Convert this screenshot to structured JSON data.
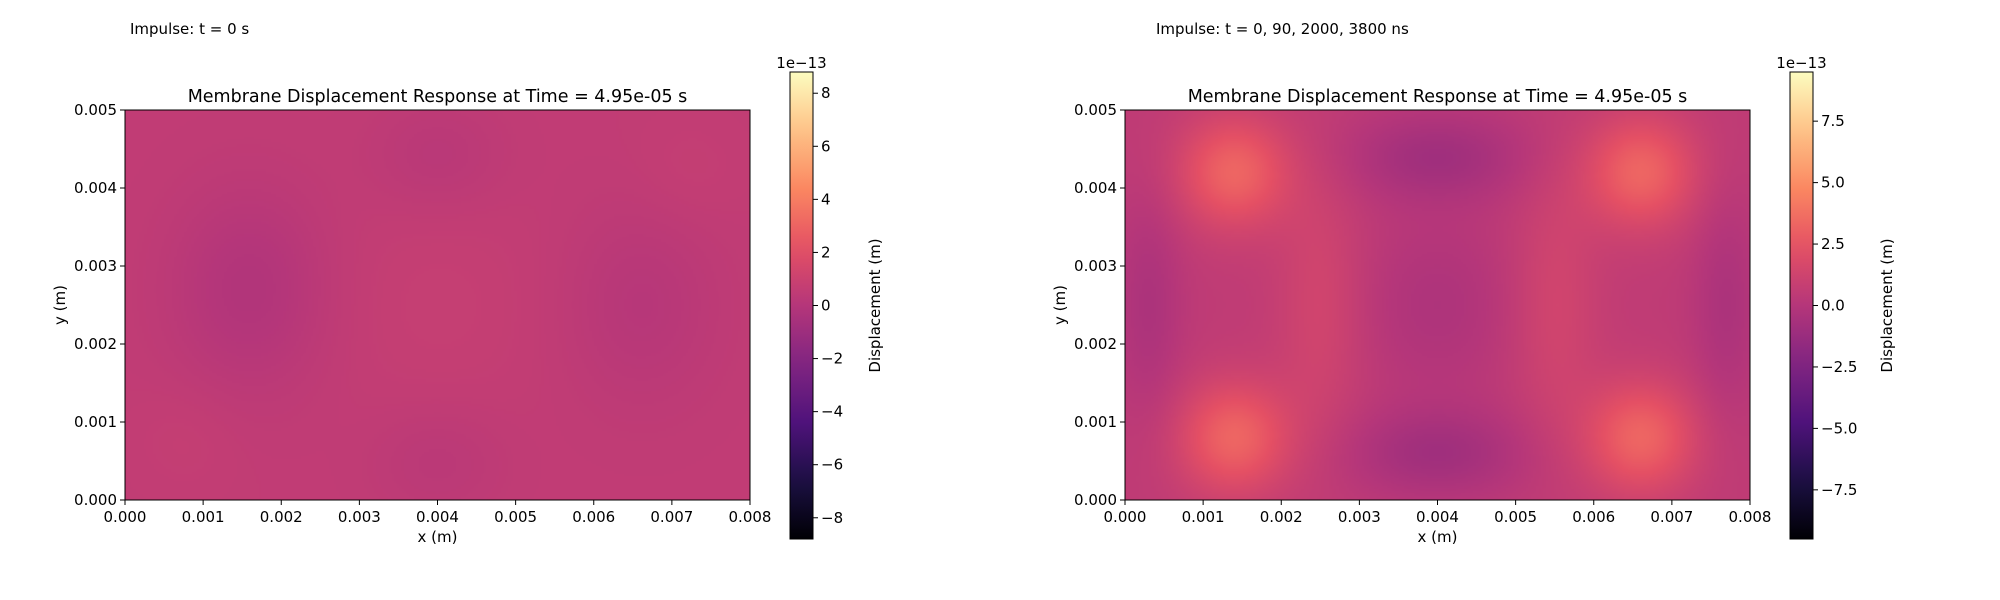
{
  "panels": [
    {
      "caption": "Impulse: t = 0 s",
      "chart_data": {
        "type": "heatmap",
        "title": "Membrane Displacement Response at Time = 4.95e-05 s",
        "xlabel": "x (m)",
        "ylabel": "y (m)",
        "xlim": [
          0,
          0.008
        ],
        "ylim": [
          0,
          0.005
        ],
        "x_ticks": [
          "0.000",
          "0.001",
          "0.002",
          "0.003",
          "0.004",
          "0.005",
          "0.006",
          "0.007",
          "0.008"
        ],
        "y_ticks": [
          "0.000",
          "0.001",
          "0.002",
          "0.003",
          "0.004",
          "0.005"
        ],
        "colormap": "magma",
        "colorbar": {
          "label": "Displacement (m)",
          "offset_text": "1e−13",
          "range": [
            -8.8,
            8.8
          ],
          "ticks": [
            -8,
            -6,
            -4,
            -2,
            0,
            2,
            4,
            6,
            8
          ],
          "tick_labels": [
            "−8",
            "−6",
            "−4",
            "−2",
            "0",
            "2",
            "4",
            "6",
            "8"
          ]
        },
        "field": {
          "base": 0.55,
          "blobs": [
            {
              "x": 0.0016,
              "y": 0.0027,
              "sx": 0.0007,
              "sy": 0.0009,
              "amp": -0.7
            },
            {
              "x": 0.0066,
              "y": 0.0025,
              "sx": 0.0007,
              "sy": 0.0009,
              "amp": -0.45
            },
            {
              "x": 0.004,
              "y": 0.0044,
              "sx": 0.0006,
              "sy": 0.0005,
              "amp": -0.35
            },
            {
              "x": 0.004,
              "y": 0.0005,
              "sx": 0.0006,
              "sy": 0.0005,
              "amp": -0.3
            },
            {
              "x": 0.004,
              "y": 0.0025,
              "sx": 0.001,
              "sy": 0.001,
              "amp": 0.2
            },
            {
              "x": 0.0008,
              "y": 0.0008,
              "sx": 0.0005,
              "sy": 0.0005,
              "amp": 0.15
            },
            {
              "x": 0.0072,
              "y": 0.0042,
              "sx": 0.0005,
              "sy": 0.0005,
              "amp": 0.15
            }
          ]
        }
      }
    },
    {
      "caption": "Impulse: t = 0, 90, 2000, 3800 ns",
      "chart_data": {
        "type": "heatmap",
        "title": "Membrane Displacement Response at Time = 4.95e-05 s",
        "xlabel": "x (m)",
        "ylabel": "y (m)",
        "xlim": [
          0,
          0.008
        ],
        "ylim": [
          0,
          0.005
        ],
        "x_ticks": [
          "0.000",
          "0.001",
          "0.002",
          "0.003",
          "0.004",
          "0.005",
          "0.006",
          "0.007",
          "0.008"
        ],
        "y_ticks": [
          "0.000",
          "0.001",
          "0.002",
          "0.003",
          "0.004",
          "0.005"
        ],
        "colormap": "magma",
        "colorbar": {
          "label": "Displacement (m)",
          "offset_text": "1e−13",
          "range": [
            -9.5,
            9.5
          ],
          "ticks": [
            -7.5,
            -5.0,
            -2.5,
            0.0,
            2.5,
            5.0,
            7.5
          ],
          "tick_labels": [
            "−7.5",
            "−5.0",
            "−2.5",
            "0.0",
            "2.5",
            "5.0",
            "7.5"
          ]
        },
        "field": {
          "base": 0.5,
          "blobs": [
            {
              "x": 0.0014,
              "y": 0.0042,
              "sx": 0.0005,
              "sy": 0.0005,
              "amp": 2.8
            },
            {
              "x": 0.0066,
              "y": 0.0042,
              "sx": 0.0005,
              "sy": 0.0005,
              "amp": 2.8
            },
            {
              "x": 0.0014,
              "y": 0.0008,
              "sx": 0.0005,
              "sy": 0.0005,
              "amp": 2.8
            },
            {
              "x": 0.0066,
              "y": 0.0008,
              "sx": 0.0005,
              "sy": 0.0005,
              "amp": 2.8
            },
            {
              "x": 0.004,
              "y": 0.0044,
              "sx": 0.0008,
              "sy": 0.0004,
              "amp": -1.4
            },
            {
              "x": 0.004,
              "y": 0.0006,
              "sx": 0.0008,
              "sy": 0.0004,
              "amp": -1.4
            },
            {
              "x": 0.004,
              "y": 0.0025,
              "sx": 0.0007,
              "sy": 0.0008,
              "amp": -0.8
            },
            {
              "x": 0.0025,
              "y": 0.0025,
              "sx": 0.0004,
              "sy": 0.0012,
              "amp": 0.9
            },
            {
              "x": 0.0055,
              "y": 0.0025,
              "sx": 0.0004,
              "sy": 0.0012,
              "amp": 0.9
            },
            {
              "x": 0.0003,
              "y": 0.0025,
              "sx": 0.0003,
              "sy": 0.001,
              "amp": -0.9
            },
            {
              "x": 0.0077,
              "y": 0.0025,
              "sx": 0.0003,
              "sy": 0.001,
              "amp": -0.9
            }
          ]
        }
      }
    }
  ]
}
